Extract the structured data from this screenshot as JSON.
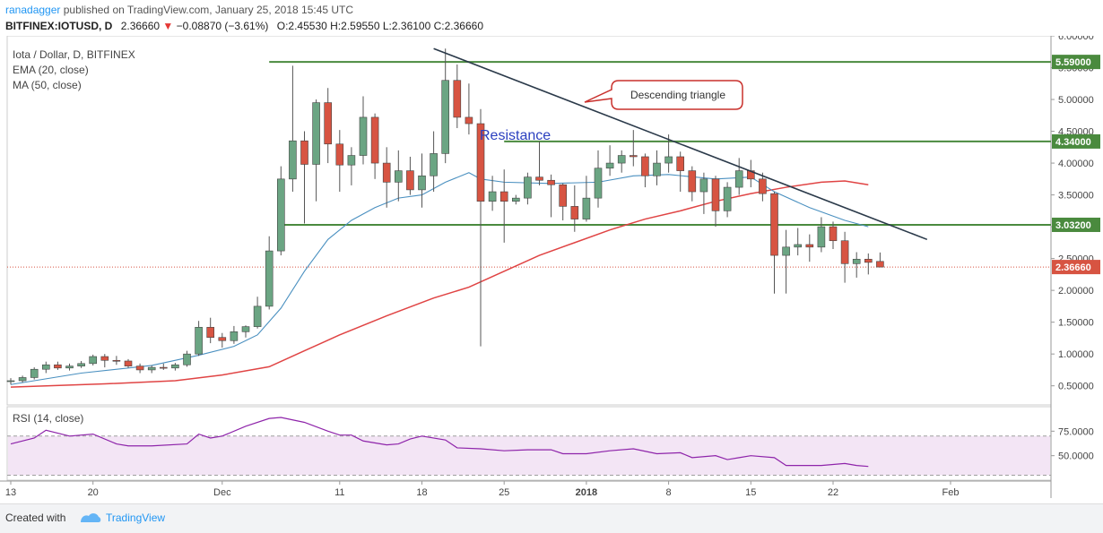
{
  "header": {
    "author": "ranadagger",
    "publish_text": "published on TradingView.com, January 25, 2018 15:45 UTC",
    "symbol": "BITFINEX:IOTUSD, D",
    "last": "2.36660",
    "change": "−0.08870 (−3.61%)",
    "ohlc": {
      "o": "O:2.45530",
      "h": "H:2.59550",
      "l": "L:2.36100",
      "c": "C:2.36660"
    }
  },
  "legend": {
    "title": "Iota / Dollar, D, BITFINEX",
    "ema": "EMA (20, close)",
    "ma": "MA (50, close)",
    "rsi": "RSI (14, close)"
  },
  "annotations": {
    "resistance": "Resistance",
    "triangle": "Descending triangle"
  },
  "footer": {
    "created": "Created with",
    "brand": "TradingView"
  },
  "colors": {
    "up": "#6ba583",
    "down": "#d75442",
    "level": "#4a8a3e",
    "trend": "#2b3a4a",
    "ema": "#4a90c0",
    "ma": "#e04444",
    "rsi": "#8e24aa",
    "annot": "#c9302c"
  },
  "chart_data": {
    "type": "candlestick",
    "y_ticks": [
      "6.00000",
      "5.50000",
      "5.00000",
      "4.50000",
      "4.00000",
      "3.50000",
      "3.00000",
      "2.50000",
      "2.00000",
      "1.50000",
      "1.00000",
      "0.50000"
    ],
    "ylim": [
      0.2,
      6.0
    ],
    "x_ticks": [
      {
        "label": "13",
        "i": 0
      },
      {
        "label": "20",
        "i": 7
      },
      {
        "label": "Dec",
        "i": 18
      },
      {
        "label": "11",
        "i": 28
      },
      {
        "label": "18",
        "i": 35
      },
      {
        "label": "25",
        "i": 42
      },
      {
        "label": "2018",
        "i": 49
      },
      {
        "label": "8",
        "i": 56
      },
      {
        "label": "15",
        "i": 63
      },
      {
        "label": "22",
        "i": 70
      },
      {
        "label": "Feb",
        "i": 80
      }
    ],
    "candles": [
      {
        "o": 0.57,
        "h": 0.62,
        "l": 0.52,
        "c": 0.58
      },
      {
        "o": 0.58,
        "h": 0.66,
        "l": 0.55,
        "c": 0.63
      },
      {
        "o": 0.63,
        "h": 0.79,
        "l": 0.6,
        "c": 0.76
      },
      {
        "o": 0.76,
        "h": 0.88,
        "l": 0.7,
        "c": 0.83
      },
      {
        "o": 0.83,
        "h": 0.88,
        "l": 0.75,
        "c": 0.78
      },
      {
        "o": 0.78,
        "h": 0.85,
        "l": 0.74,
        "c": 0.81
      },
      {
        "o": 0.81,
        "h": 0.89,
        "l": 0.78,
        "c": 0.85
      },
      {
        "o": 0.85,
        "h": 0.99,
        "l": 0.82,
        "c": 0.96
      },
      {
        "o": 0.96,
        "h": 1.0,
        "l": 0.79,
        "c": 0.9
      },
      {
        "o": 0.9,
        "h": 0.97,
        "l": 0.83,
        "c": 0.89
      },
      {
        "o": 0.89,
        "h": 0.92,
        "l": 0.78,
        "c": 0.81
      },
      {
        "o": 0.81,
        "h": 0.85,
        "l": 0.7,
        "c": 0.75
      },
      {
        "o": 0.75,
        "h": 0.82,
        "l": 0.7,
        "c": 0.79
      },
      {
        "o": 0.79,
        "h": 0.85,
        "l": 0.75,
        "c": 0.78
      },
      {
        "o": 0.78,
        "h": 0.86,
        "l": 0.74,
        "c": 0.83
      },
      {
        "o": 0.83,
        "h": 1.05,
        "l": 0.8,
        "c": 1.0
      },
      {
        "o": 1.0,
        "h": 1.52,
        "l": 0.97,
        "c": 1.42
      },
      {
        "o": 1.42,
        "h": 1.57,
        "l": 1.17,
        "c": 1.26
      },
      {
        "o": 1.26,
        "h": 1.33,
        "l": 1.1,
        "c": 1.21
      },
      {
        "o": 1.21,
        "h": 1.44,
        "l": 1.16,
        "c": 1.35
      },
      {
        "o": 1.35,
        "h": 1.45,
        "l": 1.26,
        "c": 1.43
      },
      {
        "o": 1.43,
        "h": 1.9,
        "l": 1.4,
        "c": 1.75
      },
      {
        "o": 1.75,
        "h": 2.85,
        "l": 1.7,
        "c": 2.62
      },
      {
        "o": 2.62,
        "h": 3.95,
        "l": 2.55,
        "c": 3.75
      },
      {
        "o": 3.75,
        "h": 5.53,
        "l": 3.55,
        "c": 4.35
      },
      {
        "o": 4.35,
        "h": 4.5,
        "l": 3.05,
        "c": 3.98
      },
      {
        "o": 3.98,
        "h": 5.0,
        "l": 3.4,
        "c": 4.95
      },
      {
        "o": 4.95,
        "h": 5.18,
        "l": 4.0,
        "c": 4.3
      },
      {
        "o": 4.3,
        "h": 4.52,
        "l": 3.55,
        "c": 3.97
      },
      {
        "o": 3.97,
        "h": 4.25,
        "l": 3.65,
        "c": 4.12
      },
      {
        "o": 4.12,
        "h": 5.05,
        "l": 3.98,
        "c": 4.72
      },
      {
        "o": 4.72,
        "h": 4.78,
        "l": 3.75,
        "c": 4.0
      },
      {
        "o": 4.0,
        "h": 4.25,
        "l": 3.3,
        "c": 3.7
      },
      {
        "o": 3.7,
        "h": 4.2,
        "l": 3.4,
        "c": 3.88
      },
      {
        "o": 3.88,
        "h": 4.1,
        "l": 3.5,
        "c": 3.58
      },
      {
        "o": 3.58,
        "h": 4.15,
        "l": 3.3,
        "c": 3.8
      },
      {
        "o": 3.8,
        "h": 4.5,
        "l": 3.55,
        "c": 4.15
      },
      {
        "o": 4.15,
        "h": 5.8,
        "l": 4.0,
        "c": 5.3
      },
      {
        "o": 5.3,
        "h": 5.55,
        "l": 4.55,
        "c": 4.72
      },
      {
        "o": 4.72,
        "h": 5.25,
        "l": 4.45,
        "c": 4.62
      },
      {
        "o": 4.62,
        "h": 4.85,
        "l": 1.12,
        "c": 3.4
      },
      {
        "o": 3.4,
        "h": 3.8,
        "l": 3.25,
        "c": 3.55
      },
      {
        "o": 3.55,
        "h": 3.9,
        "l": 2.75,
        "c": 3.4
      },
      {
        "o": 3.4,
        "h": 3.5,
        "l": 3.35,
        "c": 3.45
      },
      {
        "o": 3.45,
        "h": 3.85,
        "l": 3.35,
        "c": 3.78
      },
      {
        "o": 3.78,
        "h": 4.34,
        "l": 3.65,
        "c": 3.73
      },
      {
        "o": 3.73,
        "h": 3.82,
        "l": 3.15,
        "c": 3.66
      },
      {
        "o": 3.66,
        "h": 3.68,
        "l": 3.1,
        "c": 3.32
      },
      {
        "o": 3.32,
        "h": 3.65,
        "l": 2.92,
        "c": 3.12
      },
      {
        "o": 3.12,
        "h": 3.8,
        "l": 3.08,
        "c": 3.45
      },
      {
        "o": 3.45,
        "h": 4.2,
        "l": 3.3,
        "c": 3.92
      },
      {
        "o": 3.92,
        "h": 4.28,
        "l": 3.8,
        "c": 4.0
      },
      {
        "o": 4.0,
        "h": 4.2,
        "l": 3.85,
        "c": 4.12
      },
      {
        "o": 4.12,
        "h": 4.52,
        "l": 3.95,
        "c": 4.1
      },
      {
        "o": 4.1,
        "h": 4.15,
        "l": 3.62,
        "c": 3.8
      },
      {
        "o": 3.8,
        "h": 4.2,
        "l": 3.65,
        "c": 4.0
      },
      {
        "o": 4.0,
        "h": 4.45,
        "l": 3.85,
        "c": 4.1
      },
      {
        "o": 4.1,
        "h": 4.18,
        "l": 3.55,
        "c": 3.88
      },
      {
        "o": 3.88,
        "h": 3.95,
        "l": 3.4,
        "c": 3.55
      },
      {
        "o": 3.55,
        "h": 3.85,
        "l": 3.2,
        "c": 3.75
      },
      {
        "o": 3.75,
        "h": 3.8,
        "l": 3.0,
        "c": 3.25
      },
      {
        "o": 3.25,
        "h": 3.7,
        "l": 3.15,
        "c": 3.62
      },
      {
        "o": 3.62,
        "h": 4.08,
        "l": 3.5,
        "c": 3.88
      },
      {
        "o": 3.88,
        "h": 4.05,
        "l": 3.62,
        "c": 3.75
      },
      {
        "o": 3.75,
        "h": 3.85,
        "l": 3.4,
        "c": 3.52
      },
      {
        "o": 3.52,
        "h": 3.55,
        "l": 1.95,
        "c": 2.55
      },
      {
        "o": 2.55,
        "h": 2.95,
        "l": 1.95,
        "c": 2.68
      },
      {
        "o": 2.68,
        "h": 2.98,
        "l": 2.55,
        "c": 2.72
      },
      {
        "o": 2.72,
        "h": 2.88,
        "l": 2.45,
        "c": 2.68
      },
      {
        "o": 2.68,
        "h": 3.15,
        "l": 2.6,
        "c": 3.0
      },
      {
        "o": 3.0,
        "h": 3.08,
        "l": 2.65,
        "c": 2.78
      },
      {
        "o": 2.78,
        "h": 2.92,
        "l": 2.12,
        "c": 2.42
      },
      {
        "o": 2.42,
        "h": 2.6,
        "l": 2.2,
        "c": 2.49
      },
      {
        "o": 2.49,
        "h": 2.58,
        "l": 2.25,
        "c": 2.44
      },
      {
        "o": 2.4553,
        "h": 2.5955,
        "l": 2.361,
        "c": 2.3666
      }
    ],
    "ema20": [
      [
        0,
        0.52
      ],
      [
        6,
        0.7
      ],
      [
        12,
        0.82
      ],
      [
        16,
        0.98
      ],
      [
        19,
        1.12
      ],
      [
        21,
        1.3
      ],
      [
        23,
        1.72
      ],
      [
        25,
        2.3
      ],
      [
        27,
        2.8
      ],
      [
        29,
        3.1
      ],
      [
        31,
        3.3
      ],
      [
        33,
        3.45
      ],
      [
        35,
        3.5
      ],
      [
        37,
        3.7
      ],
      [
        39,
        3.85
      ],
      [
        40,
        3.75
      ],
      [
        42,
        3.7
      ],
      [
        46,
        3.68
      ],
      [
        50,
        3.7
      ],
      [
        53,
        3.8
      ],
      [
        56,
        3.82
      ],
      [
        60,
        3.75
      ],
      [
        63,
        3.78
      ],
      [
        65,
        3.55
      ],
      [
        68,
        3.3
      ],
      [
        71,
        3.1
      ],
      [
        73,
        3.0
      ]
    ],
    "ma50": [
      [
        0,
        0.48
      ],
      [
        8,
        0.53
      ],
      [
        14,
        0.58
      ],
      [
        18,
        0.67
      ],
      [
        22,
        0.8
      ],
      [
        25,
        1.05
      ],
      [
        28,
        1.3
      ],
      [
        32,
        1.6
      ],
      [
        36,
        1.88
      ],
      [
        39,
        2.05
      ],
      [
        42,
        2.3
      ],
      [
        45,
        2.55
      ],
      [
        48,
        2.75
      ],
      [
        51,
        2.95
      ],
      [
        54,
        3.12
      ],
      [
        57,
        3.25
      ],
      [
        60,
        3.4
      ],
      [
        63,
        3.52
      ],
      [
        66,
        3.62
      ],
      [
        69,
        3.7
      ],
      [
        71,
        3.72
      ],
      [
        73,
        3.66
      ]
    ],
    "levels": [
      {
        "label": "5.59000",
        "value": 5.59,
        "from": 22,
        "to": 88
      },
      {
        "label": "4.34000",
        "value": 4.34,
        "from": 42,
        "to": 88
      },
      {
        "label": "3.03200",
        "value": 3.03,
        "from": 23,
        "to": 88
      }
    ],
    "last_price": {
      "label": "2.36660",
      "value": 2.3666
    },
    "trendline": {
      "from": [
        36,
        5.8
      ],
      "to": [
        78,
        2.8
      ]
    },
    "rsi_ticks": [
      "75.0000",
      "50.0000"
    ],
    "rsi": [
      [
        0,
        62
      ],
      [
        2,
        68
      ],
      [
        3,
        76
      ],
      [
        5,
        70
      ],
      [
        7,
        72
      ],
      [
        9,
        62
      ],
      [
        10,
        60
      ],
      [
        11,
        60
      ],
      [
        12,
        60
      ],
      [
        15,
        62
      ],
      [
        16,
        72
      ],
      [
        17,
        68
      ],
      [
        18,
        70
      ],
      [
        20,
        80
      ],
      [
        22,
        88
      ],
      [
        23,
        89
      ],
      [
        25,
        84
      ],
      [
        27,
        75
      ],
      [
        28,
        71
      ],
      [
        29,
        71
      ],
      [
        30,
        65
      ],
      [
        32,
        61
      ],
      [
        33,
        62
      ],
      [
        34,
        67
      ],
      [
        35,
        70
      ],
      [
        37,
        66
      ],
      [
        38,
        58
      ],
      [
        40,
        57
      ],
      [
        42,
        55
      ],
      [
        44,
        56
      ],
      [
        46,
        56
      ],
      [
        47,
        52
      ],
      [
        49,
        52
      ],
      [
        51,
        55
      ],
      [
        53,
        57
      ],
      [
        55,
        52
      ],
      [
        57,
        53
      ],
      [
        58,
        48
      ],
      [
        60,
        50
      ],
      [
        61,
        46
      ],
      [
        62,
        48
      ],
      [
        63,
        50
      ],
      [
        65,
        48
      ],
      [
        66,
        40
      ],
      [
        68,
        40
      ],
      [
        69,
        40
      ],
      [
        71,
        42
      ],
      [
        72,
        40
      ],
      [
        73,
        39
      ]
    ],
    "rsi_ylim": [
      25,
      100
    ]
  }
}
